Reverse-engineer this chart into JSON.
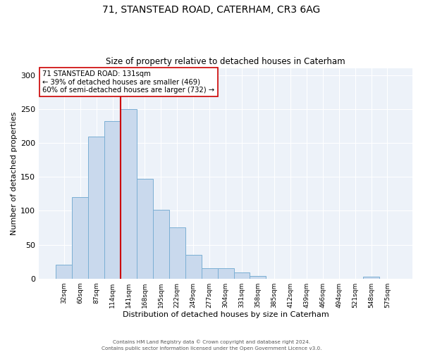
{
  "title1": "71, STANSTEAD ROAD, CATERHAM, CR3 6AG",
  "title2": "Size of property relative to detached houses in Caterham",
  "xlabel": "Distribution of detached houses by size in Caterham",
  "ylabel": "Number of detached properties",
  "bar_labels": [
    "32sqm",
    "60sqm",
    "87sqm",
    "114sqm",
    "141sqm",
    "168sqm",
    "195sqm",
    "222sqm",
    "249sqm",
    "277sqm",
    "304sqm",
    "331sqm",
    "358sqm",
    "385sqm",
    "412sqm",
    "439sqm",
    "466sqm",
    "494sqm",
    "521sqm",
    "548sqm",
    "575sqm"
  ],
  "bar_values": [
    20,
    120,
    209,
    232,
    250,
    147,
    101,
    75,
    35,
    15,
    15,
    9,
    4,
    0,
    0,
    0,
    0,
    0,
    0,
    3,
    0
  ],
  "bar_color": "#c9d9ed",
  "bar_edge_color": "#7bafd4",
  "ylim": [
    0,
    310
  ],
  "yticks": [
    0,
    50,
    100,
    150,
    200,
    250,
    300
  ],
  "vline_color": "#cc0000",
  "annotation_title": "71 STANSTEAD ROAD: 131sqm",
  "annotation_line1": "← 39% of detached houses are smaller (469)",
  "annotation_line2": "60% of semi-detached houses are larger (732) →",
  "annotation_box_color": "#ffffff",
  "annotation_box_edge": "#cc0000",
  "footer1": "Contains HM Land Registry data © Crown copyright and database right 2024.",
  "footer2": "Contains public sector information licensed under the Open Government Licence v3.0.",
  "background_color": "#edf2f9",
  "plot_background": "#ffffff"
}
